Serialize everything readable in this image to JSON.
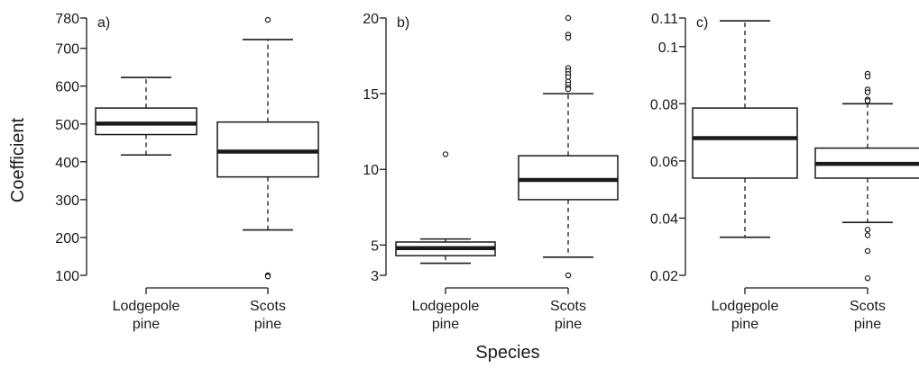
{
  "figure": {
    "ylabel": "Coefficient",
    "xlabel": "Species",
    "colors": {
      "ink": "#1a1a1a",
      "background": "#ffffff"
    }
  },
  "chart_data": [
    {
      "type": "boxplot",
      "panel_label": "a)",
      "categories": [
        [
          "Lodgepole",
          "pine"
        ],
        [
          "Scots",
          "pine"
        ]
      ],
      "yticks": [
        100,
        200,
        300,
        400,
        500,
        600,
        700,
        780
      ],
      "ylim": [
        100,
        780
      ],
      "boxes": [
        {
          "q1": 472,
          "median": 501,
          "q3": 542,
          "whisker_low": 418,
          "whisker_high": 623,
          "outliers": []
        },
        {
          "q1": 360,
          "median": 427,
          "q3": 505,
          "whisker_low": 220,
          "whisker_high": 723,
          "outliers": [
            775,
            100,
            97
          ]
        }
      ]
    },
    {
      "type": "boxplot",
      "panel_label": "b)",
      "categories": [
        [
          "Lodgepole",
          "pine"
        ],
        [
          "Scots",
          "pine"
        ]
      ],
      "yticks": [
        3,
        5,
        10,
        15,
        20
      ],
      "ylim": [
        3,
        20
      ],
      "boxes": [
        {
          "q1": 4.3,
          "median": 4.8,
          "q3": 5.2,
          "whisker_low": 3.8,
          "whisker_high": 5.4,
          "outliers": [
            11.0
          ]
        },
        {
          "q1": 8.0,
          "median": 9.3,
          "q3": 10.9,
          "whisker_low": 4.2,
          "whisker_high": 15.0,
          "outliers": [
            20.0,
            18.9,
            18.7,
            16.7,
            16.5,
            16.3,
            16.1,
            15.8,
            15.6,
            15.4,
            15.3,
            3.0
          ]
        }
      ]
    },
    {
      "type": "boxplot",
      "panel_label": "c)",
      "categories": [
        [
          "Lodgepole",
          "pine"
        ],
        [
          "Scots",
          "pine"
        ]
      ],
      "yticks": [
        0.02,
        0.04,
        0.06,
        0.08,
        0.1,
        0.11
      ],
      "ylim": [
        0.02,
        0.11
      ],
      "boxes": [
        {
          "q1": 0.054,
          "median": 0.068,
          "q3": 0.0785,
          "whisker_low": 0.0333,
          "whisker_high": 0.109,
          "outliers": []
        },
        {
          "q1": 0.054,
          "median": 0.059,
          "q3": 0.0645,
          "whisker_low": 0.0385,
          "whisker_high": 0.08,
          "outliers": [
            0.0905,
            0.0895,
            0.085,
            0.084,
            0.0815,
            0.081,
            0.036,
            0.034,
            0.0285,
            0.019
          ]
        }
      ]
    }
  ]
}
